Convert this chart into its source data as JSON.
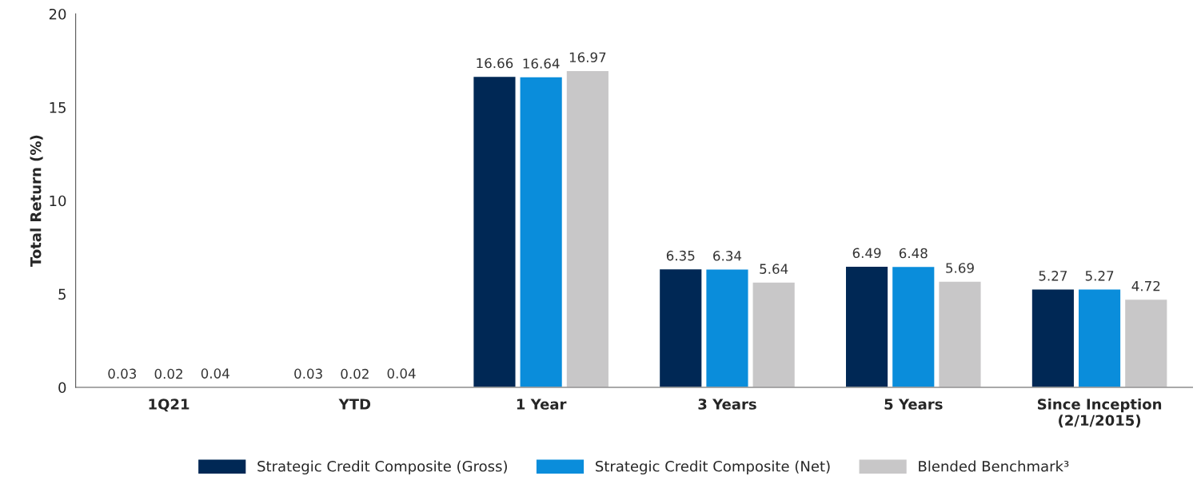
{
  "chart_data": {
    "type": "bar",
    "ylabel": "Total Return (%)",
    "categories": [
      "1Q21",
      "YTD",
      "1 Year",
      "3 Years",
      "5 Years",
      "Since Inception\n(2/1/2015)"
    ],
    "series": [
      {
        "name": "Strategic Credit Composite (Gross)",
        "color": "#002855",
        "values": [
          0.03,
          0.03,
          16.66,
          6.35,
          6.49,
          5.27
        ]
      },
      {
        "name": "Strategic Credit Composite (Net)",
        "color": "#0a8ddb",
        "values": [
          0.02,
          0.02,
          16.64,
          6.34,
          6.48,
          5.27
        ]
      },
      {
        "name": "Blended Benchmark³",
        "color": "#c8c7c8",
        "values": [
          0.04,
          0.04,
          16.97,
          5.64,
          5.69,
          4.72
        ]
      }
    ],
    "ylim": [
      0,
      20
    ],
    "yticks": [
      0,
      5,
      10,
      15,
      20
    ],
    "data_labels": true,
    "grid": false,
    "legend": "bottom"
  }
}
